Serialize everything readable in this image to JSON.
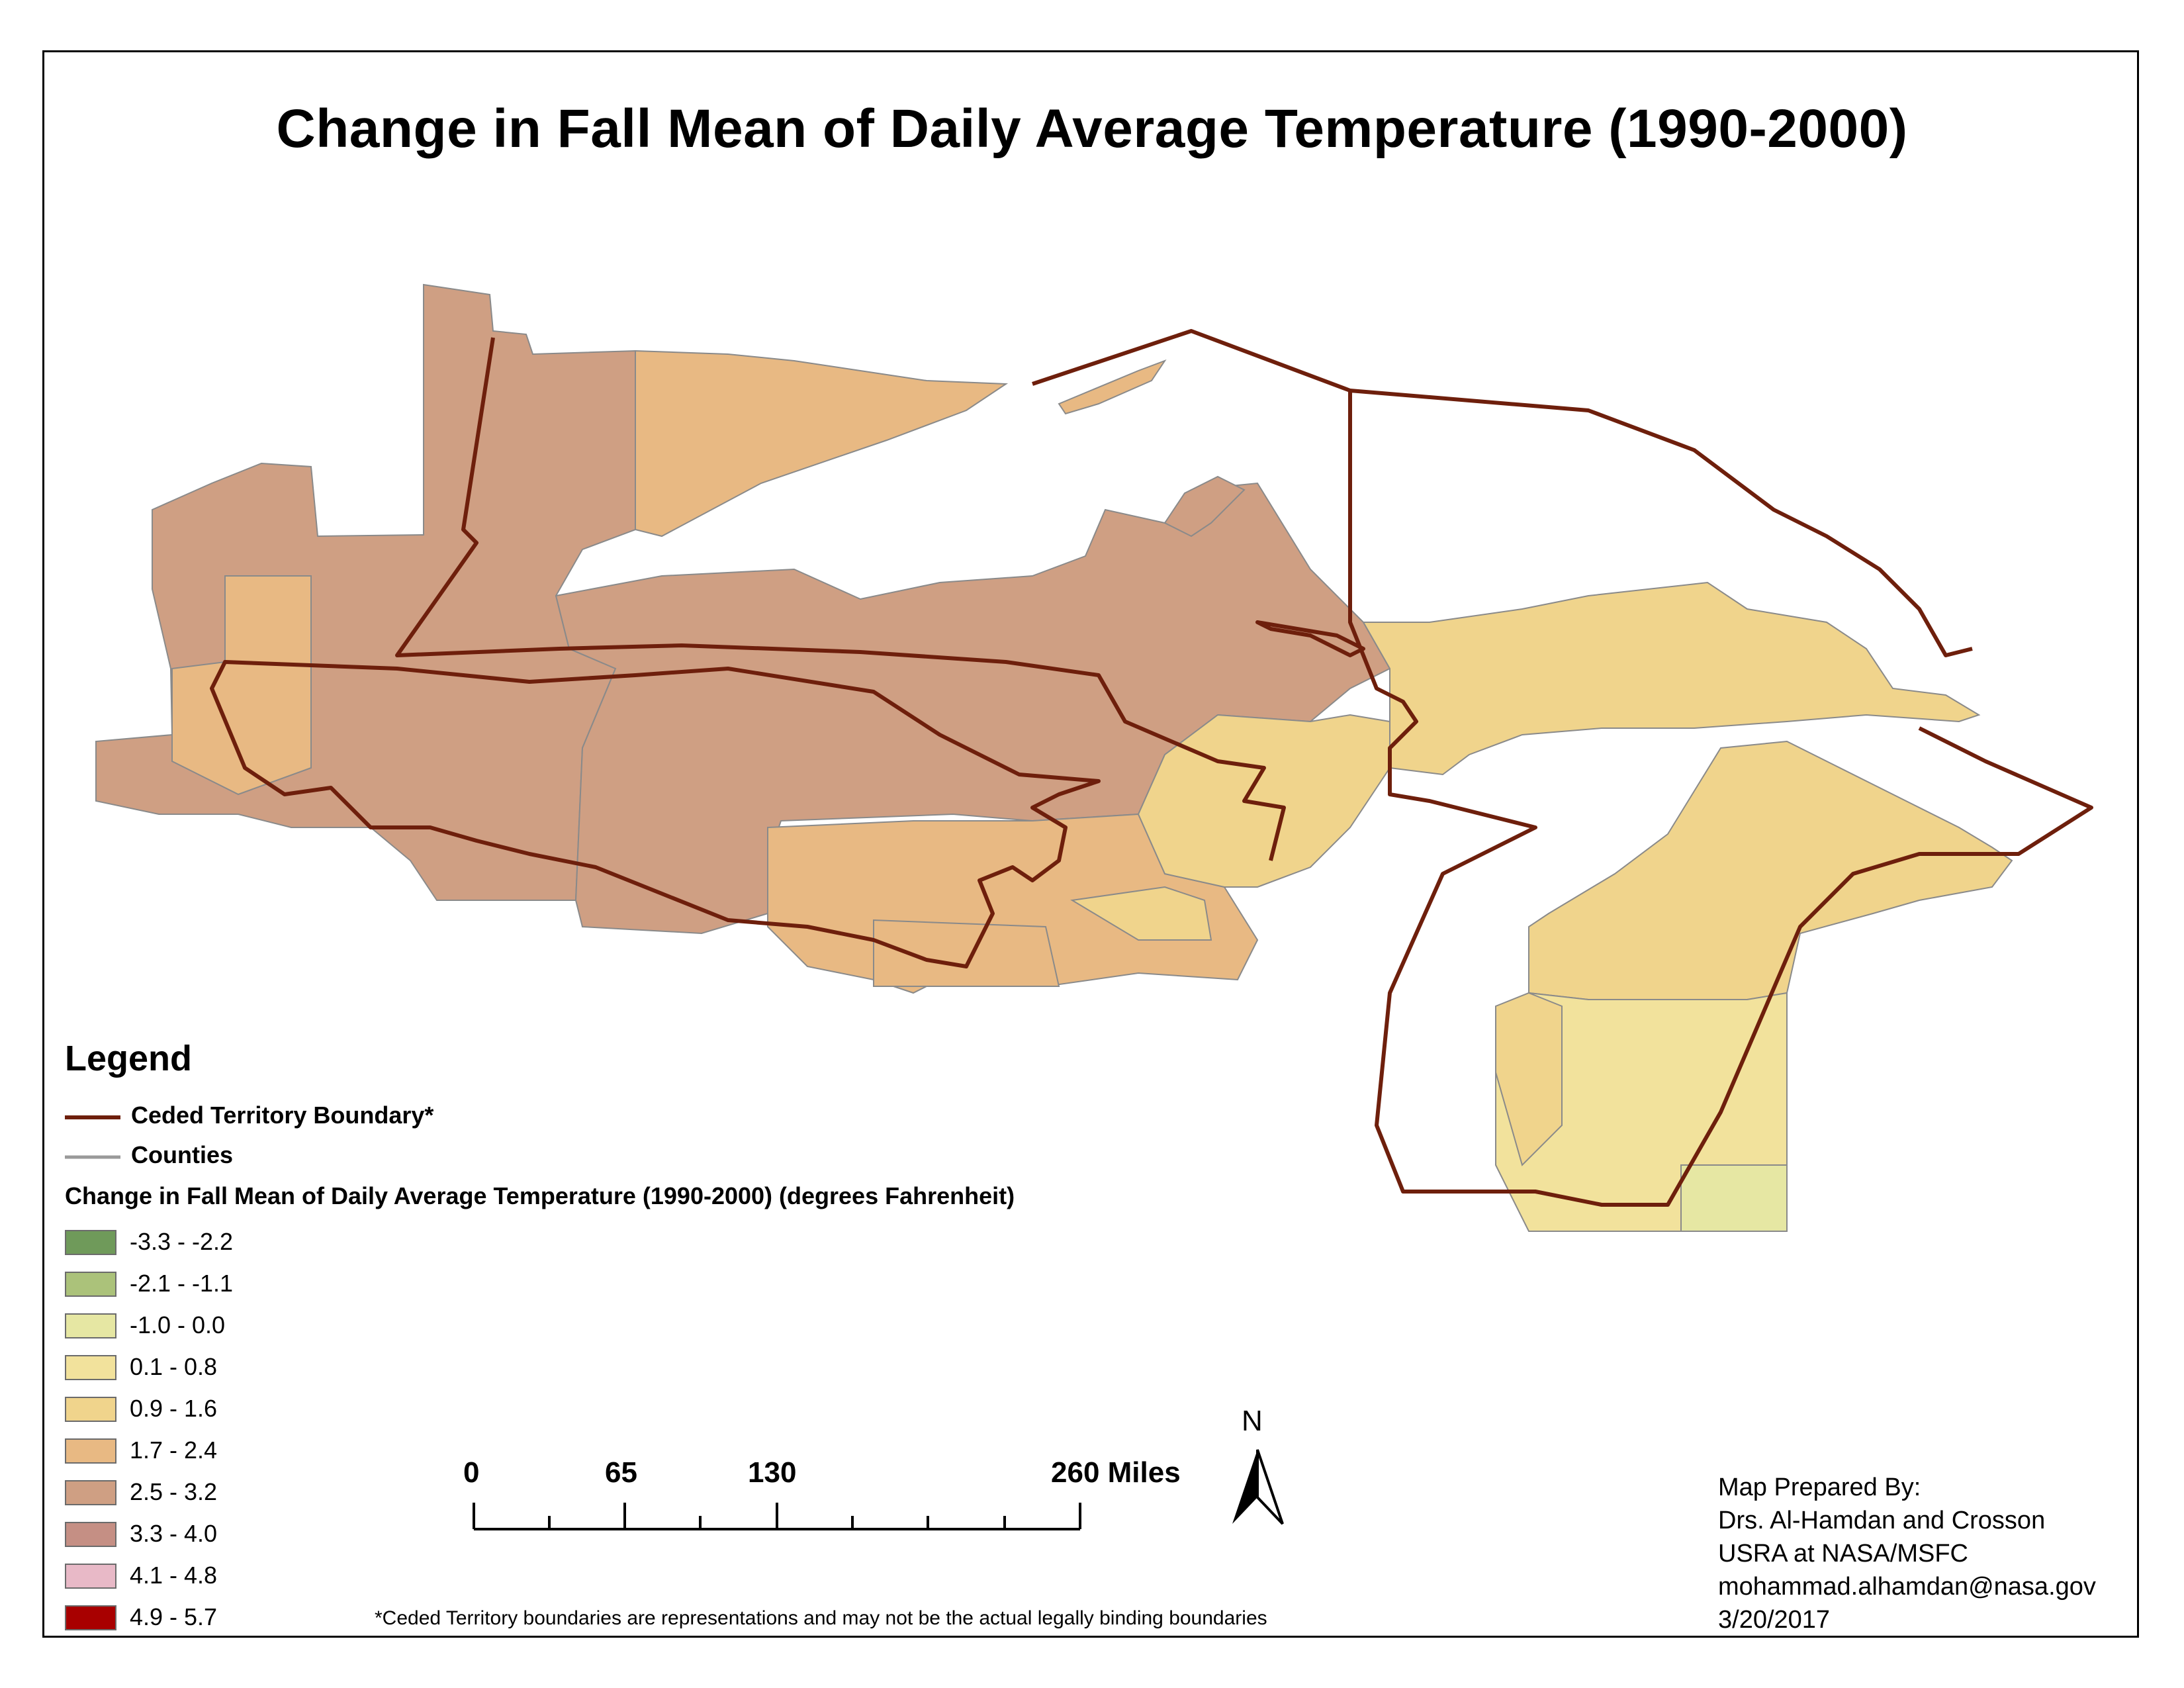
{
  "title": "Change in Fall Mean of Daily Average Temperature (1990-2000)",
  "legend": {
    "heading": "Legend",
    "boundary_label": "Ceded Territory Boundary*",
    "boundary_color": "#6e1f0c",
    "counties_label": "Counties",
    "counties_color": "#9a9a9a",
    "field_label": "Change in Fall Mean of Daily Average Temperature (1990-2000) (degrees Fahrenheit)",
    "classes": [
      {
        "label": "-3.3 - -2.2",
        "color": "#6f9a5a"
      },
      {
        "label": "-2.1 - -1.1",
        "color": "#abc27a"
      },
      {
        "label": "-1.0 - 0.0",
        "color": "#e6e7a3"
      },
      {
        "label": "0.1 - 0.8",
        "color": "#f2e29c"
      },
      {
        "label": "0.9 - 1.6",
        "color": "#f0d48c"
      },
      {
        "label": "1.7 - 2.4",
        "color": "#e8b983"
      },
      {
        "label": "2.5 - 3.2",
        "color": "#cf9f83"
      },
      {
        "label": "3.3 - 4.0",
        "color": "#c58f84"
      },
      {
        "label": "4.1 - 4.8",
        "color": "#e8b9c7"
      },
      {
        "label": "4.9 - 5.7",
        "color": "#a80000"
      }
    ]
  },
  "scale_bar": {
    "labels": [
      "0",
      "65",
      "130",
      "260 Miles"
    ]
  },
  "north_arrow": {
    "label": "N"
  },
  "credits": [
    "Map Prepared By:",
    "Drs. Al-Hamdan and Crosson",
    "USRA at NASA/MSFC",
    "mohammad.alhamdan@nasa.gov",
    "3/20/2017"
  ],
  "footnote": "*Ceded Territory boundaries are representations and may not be the actual legally binding boundaries"
}
